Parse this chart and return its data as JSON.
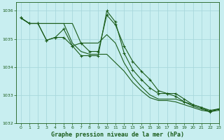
{
  "title": "Graphe pression niveau de la mer (hPa)",
  "background_color": "#c8eef0",
  "grid_color": "#a8d8dc",
  "line_color": "#1a5c1a",
  "xlim": [
    -0.5,
    23
  ],
  "ylim": [
    1032,
    1036.3
  ],
  "yticks": [
    1032,
    1033,
    1034,
    1035,
    1036
  ],
  "xticks": [
    0,
    1,
    2,
    3,
    4,
    5,
    6,
    7,
    8,
    9,
    10,
    11,
    12,
    13,
    14,
    15,
    16,
    17,
    18,
    19,
    20,
    21,
    22,
    23
  ],
  "series": [
    {
      "x": [
        0,
        1,
        2,
        3,
        4,
        5,
        6,
        7,
        8,
        9,
        10,
        11,
        12,
        13,
        14,
        15,
        16,
        17,
        18,
        19,
        20,
        21,
        22,
        23
      ],
      "y": [
        1035.75,
        1035.55,
        1035.55,
        1034.95,
        1035.05,
        1035.05,
        1034.75,
        1034.4,
        1034.4,
        1034.4,
        1036.0,
        1035.6,
        1034.5,
        1033.9,
        1033.55,
        1033.25,
        1033.05,
        1033.05,
        1032.95,
        1032.75,
        1032.65,
        1032.55,
        1032.4,
        1032.5
      ],
      "marker": true
    },
    {
      "x": [
        0,
        1,
        2,
        3,
        4,
        5,
        6,
        7,
        8,
        9,
        10,
        11,
        12,
        13,
        14,
        15,
        16,
        17,
        18,
        19,
        20,
        21,
        22,
        23
      ],
      "y": [
        1035.75,
        1035.55,
        1035.55,
        1035.55,
        1035.55,
        1035.55,
        1035.55,
        1034.85,
        1034.85,
        1034.85,
        1035.15,
        1034.85,
        1034.15,
        1033.65,
        1033.3,
        1033.0,
        1032.85,
        1032.85,
        1032.85,
        1032.75,
        1032.6,
        1032.5,
        1032.4,
        1032.5
      ],
      "marker": false
    },
    {
      "x": [
        0,
        1,
        2,
        3,
        4,
        5,
        6,
        7,
        8,
        9,
        10,
        11,
        12,
        13,
        14,
        15,
        16,
        17,
        18,
        19,
        20,
        21,
        22,
        23
      ],
      "y": [
        1035.75,
        1035.55,
        1035.55,
        1035.55,
        1035.55,
        1035.55,
        1034.85,
        1034.55,
        1034.45,
        1034.45,
        1034.45,
        1034.15,
        1033.85,
        1033.45,
        1033.15,
        1032.9,
        1032.8,
        1032.8,
        1032.75,
        1032.65,
        1032.55,
        1032.45,
        1032.4,
        1032.45
      ],
      "marker": false
    },
    {
      "x": [
        0,
        1,
        2,
        3,
        4,
        5,
        6,
        7,
        8,
        9,
        10,
        11,
        12,
        13,
        14,
        15,
        16,
        17,
        18,
        19,
        20,
        21,
        22,
        23
      ],
      "y": [
        1035.75,
        1035.55,
        1035.55,
        1034.95,
        1035.05,
        1035.35,
        1034.75,
        1034.85,
        1034.55,
        1034.55,
        1035.85,
        1035.5,
        1034.75,
        1034.2,
        1033.85,
        1033.55,
        1033.15,
        1033.05,
        1033.05,
        1032.85,
        1032.65,
        1032.55,
        1032.45,
        1032.5
      ],
      "marker": true
    }
  ]
}
